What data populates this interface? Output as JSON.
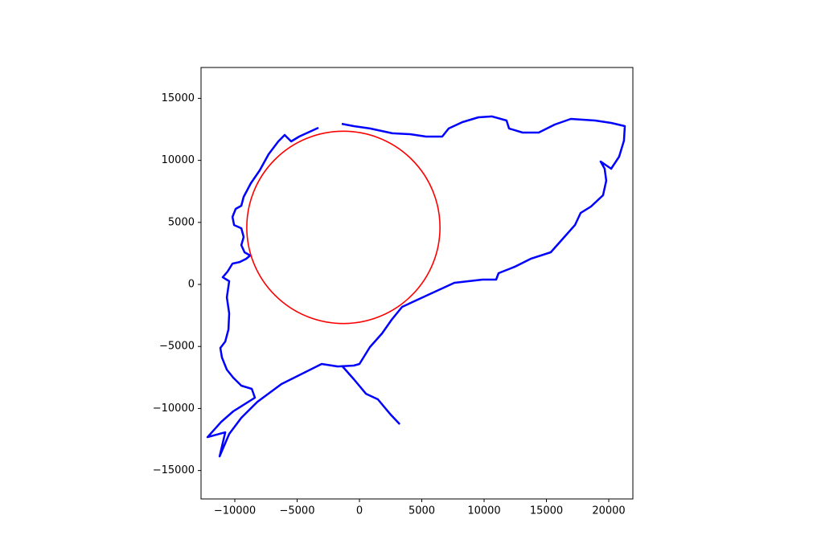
{
  "chart_data": {
    "type": "line",
    "xlim": [
      -12710,
      21935
    ],
    "ylim": [
      -17290,
      17487
    ],
    "xticks": [
      {
        "value": -10000,
        "label": "−10000"
      },
      {
        "value": -5000,
        "label": "−5000"
      },
      0,
      5000,
      10000,
      15000,
      20000
    ],
    "yticks": [
      {
        "value": -15000,
        "label": "−15000"
      },
      {
        "value": -10000,
        "label": "−10000"
      },
      {
        "value": -5000,
        "label": "−5000"
      },
      0,
      5000,
      10000,
      15000
    ],
    "series": [
      {
        "color": "#0000ff",
        "x": [
          -3290,
          -4840,
          -5480,
          -6000,
          -6510,
          -7290,
          -8000,
          -8710,
          -9290,
          -9480,
          -9930,
          -10190,
          -10060,
          -9480,
          -9290,
          -9480,
          -9220,
          -8770,
          -9090,
          -9610,
          -10190,
          -10580,
          -10970,
          -10450,
          -10640,
          -10450,
          -10510,
          -10770,
          -11160,
          -11030,
          -10640,
          -10130,
          -9480,
          -8640,
          -8390,
          -10130,
          -11090,
          -12190,
          -10770,
          -11220,
          -10450,
          -9480,
          -8190,
          -6260,
          -4320,
          -3030,
          -1740,
          -450,
          0,
          840,
          1810,
          2580,
          3420,
          5350,
          7610,
          9870,
          10970,
          11160,
          12450,
          13740,
          15350,
          16320,
          17290,
          17740,
          18580,
          19540,
          19800,
          19670,
          19350,
          20190,
          20830,
          21220,
          21290,
          20190,
          18900,
          16960,
          15670,
          14380,
          13090,
          12000,
          11800,
          10640,
          9550,
          8260,
          7160,
          6640,
          5350,
          4060,
          2640,
          840,
          -450,
          -1420,
          null,
          -1420,
          -450,
          520,
          1480,
          2450,
          3230
        ],
        "y": [
          12630,
          11920,
          11530,
          12050,
          11530,
          10490,
          9200,
          8160,
          7060,
          6350,
          6090,
          5440,
          4790,
          4530,
          3820,
          3170,
          2590,
          2330,
          2070,
          1810,
          1680,
          1040,
          580,
          260,
          -1040,
          -2330,
          -3630,
          -4600,
          -5120,
          -5890,
          -6870,
          -7510,
          -8160,
          -8420,
          -9130,
          -10230,
          -11080,
          -12310,
          -11920,
          -13860,
          -12050,
          -10750,
          -9460,
          -8030,
          -7060,
          -6410,
          -6610,
          -6540,
          -6410,
          -5050,
          -3950,
          -2850,
          -1810,
          -910,
          130,
          390,
          390,
          910,
          1420,
          2070,
          2590,
          3690,
          4790,
          5760,
          6280,
          7190,
          8360,
          9330,
          9910,
          9330,
          10300,
          11590,
          12760,
          13020,
          13210,
          13340,
          12890,
          12240,
          12240,
          12570,
          13210,
          13540,
          13470,
          13080,
          12570,
          11920,
          11920,
          12110,
          12180,
          12570,
          12760,
          12950,
          null,
          -6540,
          -7640,
          -8810,
          -9260,
          -10430,
          -11270
        ]
      }
    ],
    "circle": {
      "x": -1290,
      "y": 4600,
      "radius": 7750,
      "color": "#ff0000"
    }
  }
}
